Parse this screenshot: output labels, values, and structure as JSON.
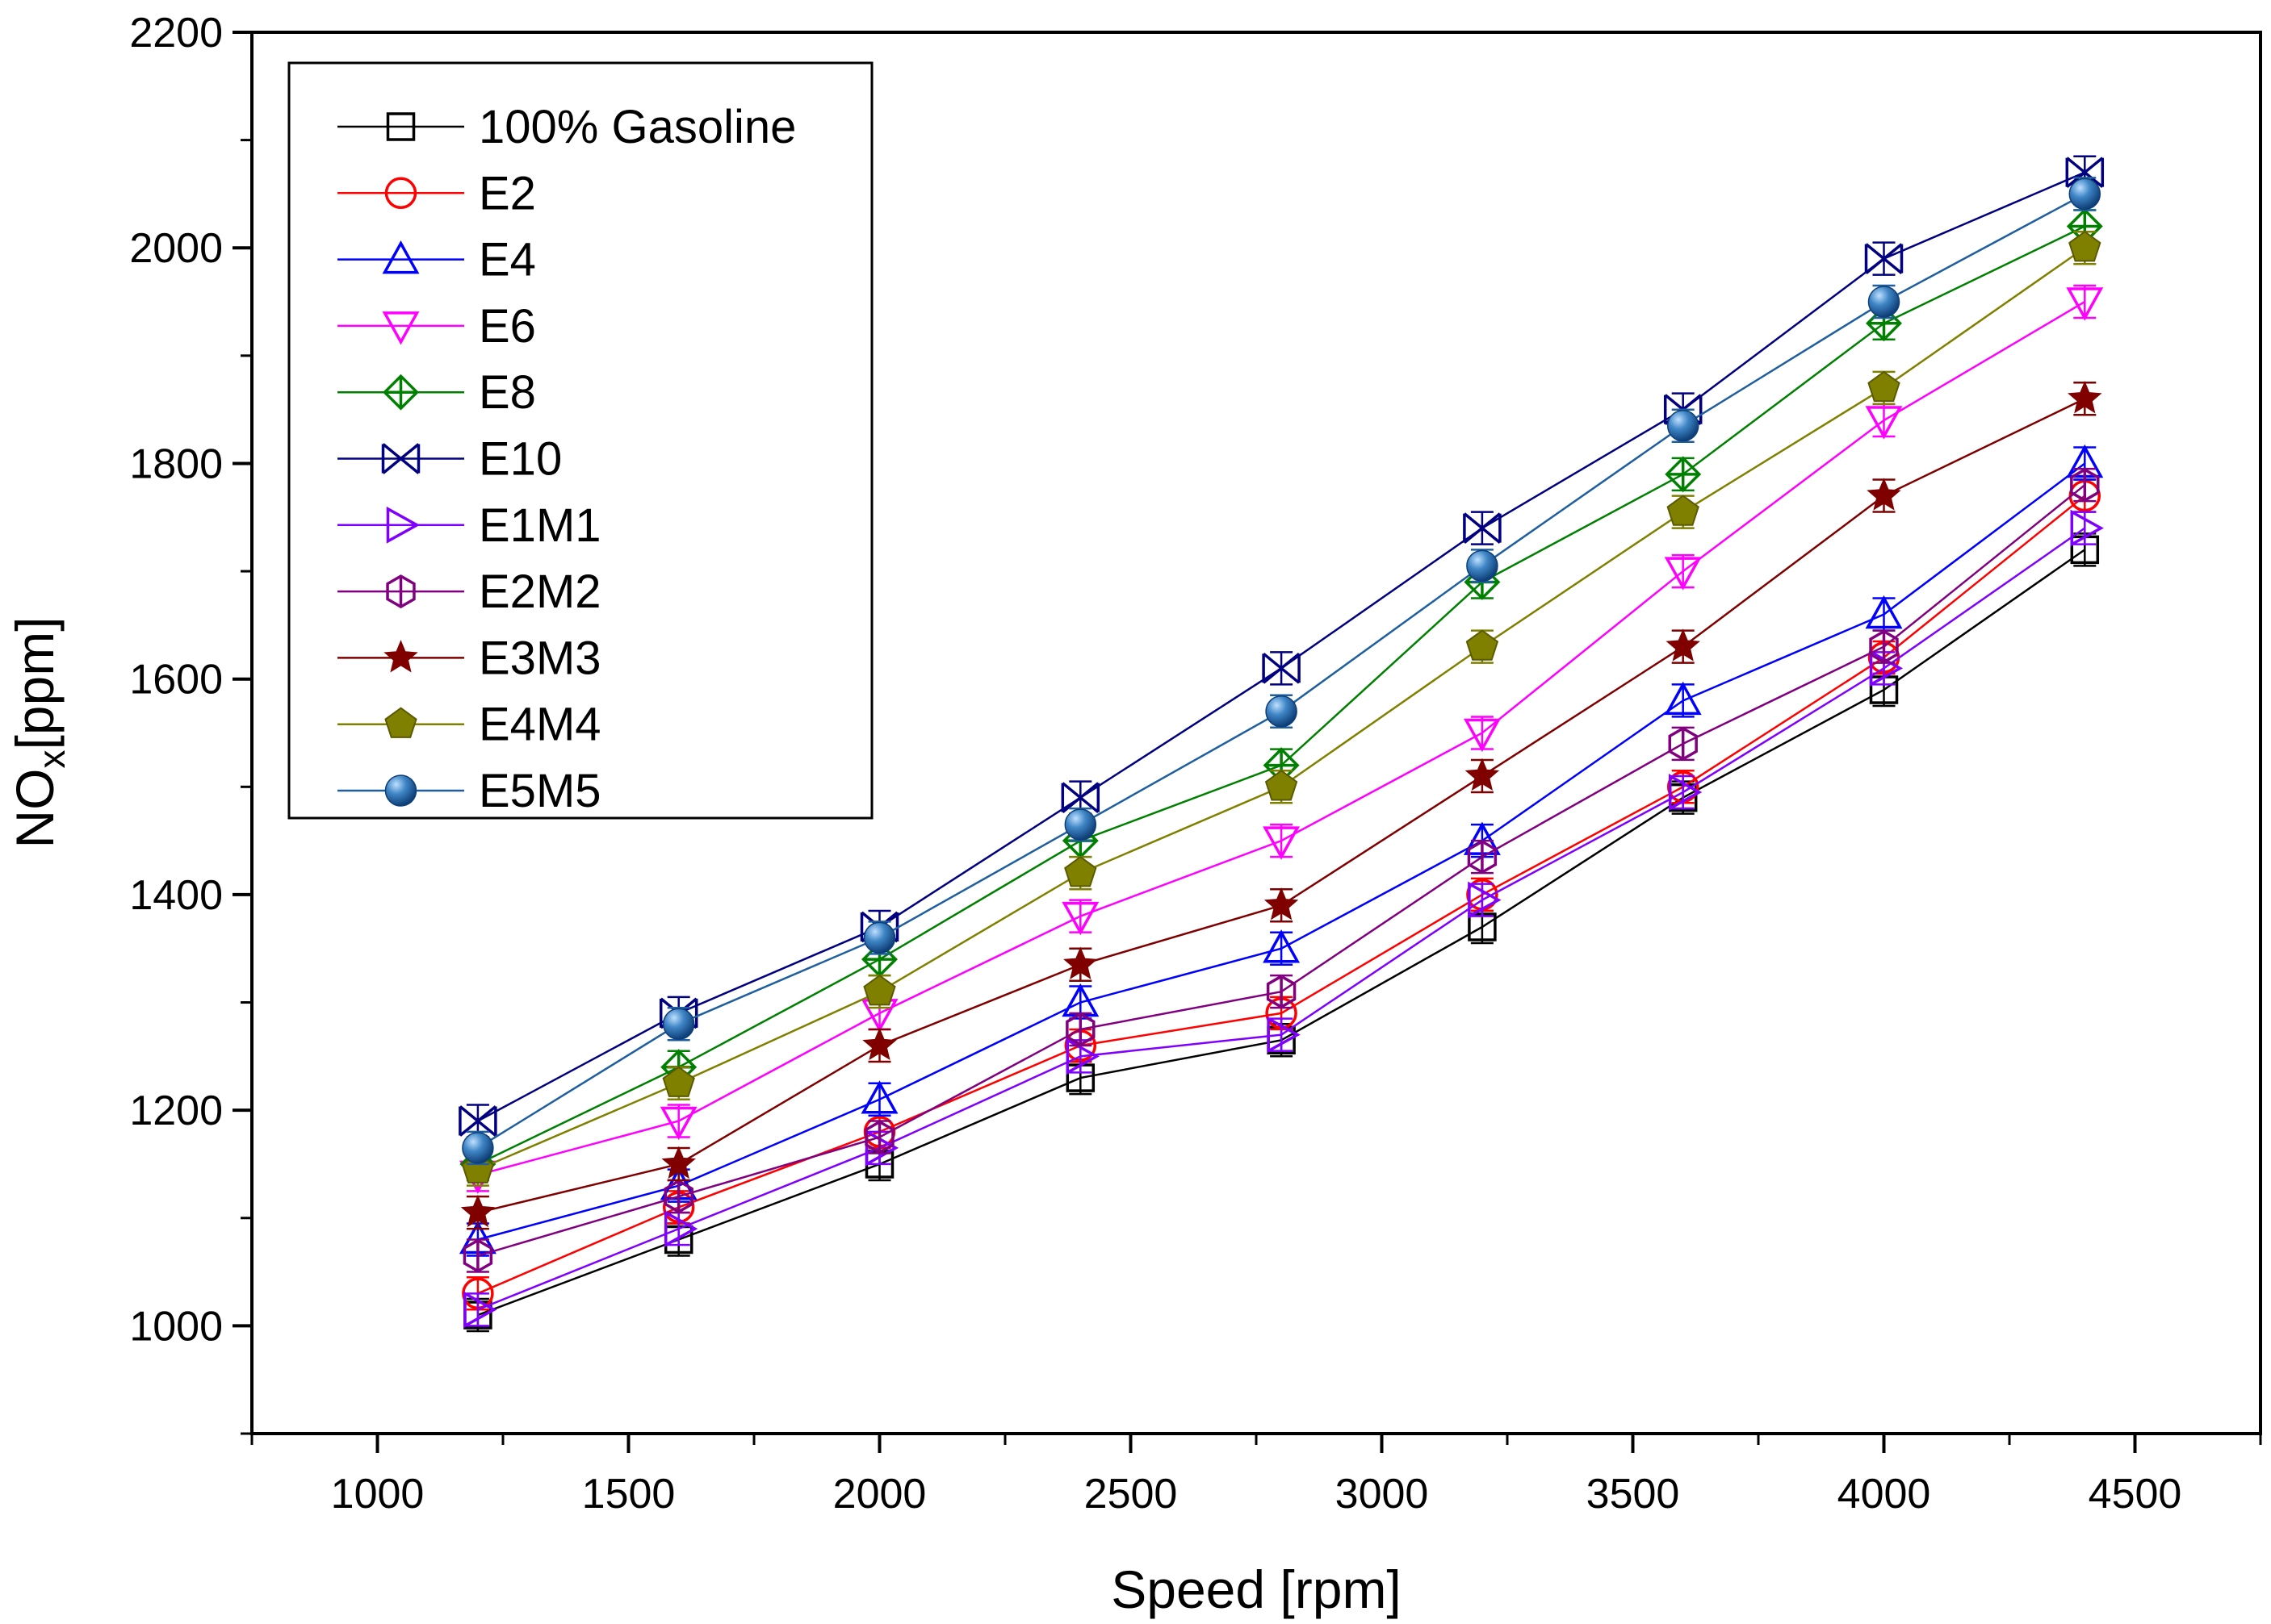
{
  "chart_data": {
    "type": "line",
    "title": "",
    "xlabel": "Speed [rpm]",
    "ylabel_main": "NO",
    "ylabel_sub": "x",
    "ylabel_rest": "[ppm]",
    "xlim": [
      750,
      4750
    ],
    "ylim": [
      900,
      2200
    ],
    "xticks": [
      1000,
      1500,
      2000,
      2500,
      3000,
      3500,
      4000,
      4500
    ],
    "xtick_labels": [
      "1000",
      "1500",
      "2000",
      "2500",
      "3000",
      "3500",
      "4000",
      "4500"
    ],
    "yticks": [
      1000,
      1200,
      1400,
      1600,
      1800,
      2000,
      2200
    ],
    "ytick_labels": [
      "1000",
      "1200",
      "1400",
      "1600",
      "1800",
      "2000",
      "2200"
    ],
    "legend_position": "top-left",
    "x": [
      1200,
      1600,
      2000,
      2400,
      2800,
      3200,
      3600,
      4000,
      4400
    ],
    "series": [
      {
        "name": "100% Gasoline",
        "color": "#000000",
        "marker": "square",
        "values": [
          1010,
          1080,
          1150,
          1230,
          1265,
          1370,
          1490,
          1590,
          1720
        ]
      },
      {
        "name": "E2",
        "color": "#ff0000",
        "marker": "circle",
        "values": [
          1030,
          1110,
          1180,
          1260,
          1290,
          1400,
          1500,
          1620,
          1770
        ]
      },
      {
        "name": "E4",
        "color": "#0000ff",
        "marker": "triangle-up",
        "values": [
          1080,
          1130,
          1210,
          1300,
          1350,
          1450,
          1580,
          1660,
          1800
        ]
      },
      {
        "name": "E6",
        "color": "#ff00ff",
        "marker": "triangle-down",
        "values": [
          1140,
          1190,
          1290,
          1380,
          1450,
          1550,
          1700,
          1840,
          1950
        ]
      },
      {
        "name": "E8",
        "color": "#008000",
        "marker": "diamond-plus",
        "values": [
          1150,
          1240,
          1340,
          1450,
          1520,
          1690,
          1790,
          1930,
          2020
        ]
      },
      {
        "name": "E10",
        "color": "#000080",
        "marker": "x-bar",
        "values": [
          1190,
          1290,
          1370,
          1490,
          1610,
          1740,
          1850,
          1990,
          2070
        ]
      },
      {
        "name": "E1M1",
        "color": "#8000ff",
        "marker": "triangle-right",
        "values": [
          1015,
          1090,
          1165,
          1250,
          1270,
          1395,
          1495,
          1610,
          1740
        ]
      },
      {
        "name": "E2M2",
        "color": "#800080",
        "marker": "hexagon",
        "values": [
          1065,
          1120,
          1175,
          1275,
          1310,
          1435,
          1540,
          1630,
          1780
        ]
      },
      {
        "name": "E3M3",
        "color": "#800000",
        "marker": "star",
        "values": [
          1105,
          1150,
          1260,
          1335,
          1390,
          1510,
          1630,
          1770,
          1860
        ]
      },
      {
        "name": "E4M4",
        "color": "#808000",
        "marker": "pentagon",
        "values": [
          1145,
          1225,
          1310,
          1420,
          1500,
          1630,
          1755,
          1870,
          2000
        ]
      },
      {
        "name": "E5M5",
        "color": "#1f5f9f",
        "marker": "ball",
        "values": [
          1165,
          1280,
          1360,
          1465,
          1570,
          1705,
          1835,
          1950,
          2050
        ]
      }
    ]
  }
}
